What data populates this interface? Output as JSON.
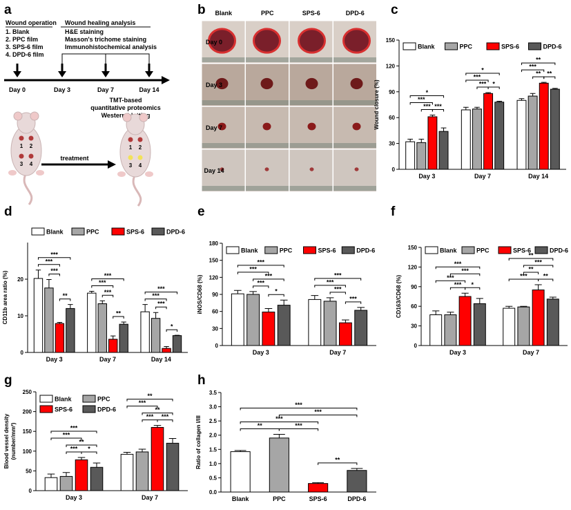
{
  "panel_labels": [
    "a",
    "b",
    "c",
    "d",
    "e",
    "f",
    "g",
    "h"
  ],
  "panel_a": {
    "operation_title": "Wound operation",
    "groups": [
      "1. Blank",
      "2. PPC film",
      "3. SPS-6 film",
      "4. DPD-6 film"
    ],
    "analysis_title": "Wound healing analysis",
    "analyses": [
      "H&E staining",
      "Masson's trichome staining",
      "Immunohistochemical analysis"
    ],
    "timeline": [
      "Day 0",
      "Day 3",
      "Day 7",
      "Day 14"
    ],
    "proteomics": [
      "TMT-based",
      "quantitative proteomics",
      "Western blotting"
    ],
    "treatment": "treatment",
    "site_numbers": [
      "1",
      "2",
      "3",
      "4"
    ]
  },
  "panel_b": {
    "columns": [
      "Blank",
      "PPC",
      "SPS-6",
      "DPD-6"
    ],
    "rows": [
      "Day 0",
      "Day 3",
      "Day 7",
      "Day 14"
    ]
  },
  "chart_data": [
    {
      "type": "bar",
      "y_label": "Wound closure (%)",
      "categories": [
        "Day 3",
        "Day 7",
        "Day 14"
      ],
      "series": [
        {
          "name": "Blank",
          "color": "#ffffff",
          "values": [
            32,
            69,
            80
          ],
          "errors": [
            3,
            3,
            2
          ]
        },
        {
          "name": "PPC",
          "color": "#a6a6a6",
          "values": [
            31,
            70,
            85
          ],
          "errors": [
            4,
            2,
            3
          ]
        },
        {
          "name": "SPS-6",
          "color": "#ff0000",
          "values": [
            61,
            88,
            100
          ],
          "errors": [
            2,
            1,
            1
          ]
        },
        {
          "name": "DPD-6",
          "color": "#595959",
          "values": [
            44,
            78,
            93
          ],
          "errors": [
            4,
            1,
            1
          ]
        }
      ],
      "ylim": [
        0,
        150
      ],
      "yticks": [
        0,
        30,
        60,
        90,
        120,
        150
      ],
      "legend": "upper center",
      "annotations": [
        {
          "text": "***",
          "category": 0,
          "bars": [
            1,
            2
          ]
        },
        {
          "text": "***",
          "category": 0,
          "bars": [
            2,
            3
          ]
        },
        {
          "text": "***",
          "category": 0,
          "bars": [
            0,
            2
          ]
        },
        {
          "text": "*",
          "category": 0,
          "bars": [
            0,
            3
          ]
        },
        {
          "text": "***",
          "category": 1,
          "bars": [
            1,
            2
          ]
        },
        {
          "text": "*",
          "category": 1,
          "bars": [
            2,
            3
          ]
        },
        {
          "text": "***",
          "category": 1,
          "bars": [
            0,
            2
          ]
        },
        {
          "text": "*",
          "category": 1,
          "bars": [
            0,
            3
          ]
        },
        {
          "text": "**",
          "category": 2,
          "bars": [
            1,
            2
          ]
        },
        {
          "text": "**",
          "category": 2,
          "bars": [
            2,
            3
          ]
        },
        {
          "text": "***",
          "category": 2,
          "bars": [
            0,
            2
          ]
        },
        {
          "text": "**",
          "category": 2,
          "bars": [
            0,
            3
          ]
        }
      ]
    },
    {
      "type": "bar",
      "y_label": "CD11b area ratio (%)",
      "categories": [
        "Day 3",
        "Day 7",
        "Day 14"
      ],
      "series": [
        {
          "name": "Blank",
          "color": "#ffffff",
          "values": [
            20.2,
            16.2,
            11.1
          ],
          "errors": [
            2.3,
            0.5,
            2
          ]
        },
        {
          "name": "PPC",
          "color": "#a6a6a6",
          "values": [
            17.6,
            13.3,
            9.3
          ],
          "errors": [
            2.3,
            0.8,
            1.6
          ]
        },
        {
          "name": "SPS-6",
          "color": "#ff0000",
          "values": [
            7.9,
            3.6,
            1.1
          ],
          "errors": [
            0.3,
            0.9,
            0.5
          ]
        },
        {
          "name": "DPD-6",
          "color": "#595959",
          "values": [
            12,
            7.7,
            4.6
          ],
          "errors": [
            1.1,
            0.6,
            0.1
          ]
        }
      ],
      "ylim": [
        0,
        30
      ],
      "yticks": [
        0,
        10,
        20
      ],
      "legend": "upper center",
      "annotations": [
        {
          "text": "**",
          "category": 0,
          "bars": [
            2,
            3
          ]
        },
        {
          "text": "***",
          "category": 0,
          "bars": [
            1,
            2
          ]
        },
        {
          "text": "***",
          "category": 0,
          "bars": [
            0,
            2
          ]
        },
        {
          "text": "***",
          "category": 0,
          "bars": [
            0,
            3
          ]
        },
        {
          "text": "**",
          "category": 1,
          "bars": [
            2,
            3
          ]
        },
        {
          "text": "***",
          "category": 1,
          "bars": [
            1,
            2
          ]
        },
        {
          "text": "***",
          "category": 1,
          "bars": [
            0,
            2
          ]
        },
        {
          "text": "***",
          "category": 1,
          "bars": [
            0,
            3
          ]
        },
        {
          "text": "*",
          "category": 2,
          "bars": [
            2,
            3
          ]
        },
        {
          "text": "***",
          "category": 2,
          "bars": [
            1,
            2
          ]
        },
        {
          "text": "***",
          "category": 2,
          "bars": [
            0,
            2
          ]
        },
        {
          "text": "***",
          "category": 2,
          "bars": [
            0,
            3
          ]
        }
      ]
    },
    {
      "type": "bar",
      "y_label": "iNOS/CD68 (%)",
      "categories": [
        "Day 3",
        "Day 7"
      ],
      "series": [
        {
          "name": "Blank",
          "color": "#ffffff",
          "values": [
            91,
            81
          ],
          "errors": [
            6,
            7
          ]
        },
        {
          "name": "PPC",
          "color": "#a6a6a6",
          "values": [
            90,
            78
          ],
          "errors": [
            5,
            6
          ]
        },
        {
          "name": "SPS-6",
          "color": "#ff0000",
          "values": [
            59,
            40
          ],
          "errors": [
            6,
            5
          ]
        },
        {
          "name": "DPD-6",
          "color": "#595959",
          "values": [
            71,
            62
          ],
          "errors": [
            9,
            5
          ]
        }
      ],
      "ylim": [
        0,
        180
      ],
      "yticks": [
        0,
        30,
        60,
        90,
        120,
        150,
        180
      ],
      "legend": "upper center",
      "annotations": [
        {
          "text": "*",
          "category": 0,
          "bars": [
            2,
            3
          ]
        },
        {
          "text": "***",
          "category": 0,
          "bars": [
            1,
            2
          ]
        },
        {
          "text": "***",
          "category": 0,
          "bars": [
            1,
            3
          ]
        },
        {
          "text": "***",
          "category": 0,
          "bars": [
            0,
            2
          ]
        },
        {
          "text": "***",
          "category": 0,
          "bars": [
            0,
            3
          ]
        },
        {
          "text": "***",
          "category": 1,
          "bars": [
            2,
            3
          ]
        },
        {
          "text": "***",
          "category": 1,
          "bars": [
            1,
            2
          ]
        },
        {
          "text": "***",
          "category": 1,
          "bars": [
            0,
            2
          ]
        },
        {
          "text": "***",
          "category": 1,
          "bars": [
            0,
            3
          ]
        }
      ]
    },
    {
      "type": "bar",
      "y_label": "CD163/CD68 (%)",
      "categories": [
        "Day 3",
        "Day 7"
      ],
      "series": [
        {
          "name": "Blank",
          "color": "#ffffff",
          "values": [
            47,
            57
          ],
          "errors": [
            6,
            3
          ]
        },
        {
          "name": "PPC",
          "color": "#a6a6a6",
          "values": [
            47,
            59
          ],
          "errors": [
            4,
            1
          ]
        },
        {
          "name": "SPS-6",
          "color": "#ff0000",
          "values": [
            75,
            85
          ],
          "errors": [
            5,
            8
          ]
        },
        {
          "name": "DPD-6",
          "color": "#595959",
          "values": [
            64,
            71
          ],
          "errors": [
            8,
            3
          ]
        }
      ],
      "ylim": [
        0,
        150
      ],
      "yticks": [
        0,
        30,
        60,
        90,
        120,
        150
      ],
      "legend": "upper center",
      "annotations": [
        {
          "text": "*",
          "category": 0,
          "bars": [
            2,
            3
          ]
        },
        {
          "text": "***",
          "category": 0,
          "bars": [
            1,
            2
          ]
        },
        {
          "text": "***",
          "category": 0,
          "bars": [
            0,
            2
          ]
        },
        {
          "text": "***",
          "category": 0,
          "bars": [
            1,
            3
          ]
        },
        {
          "text": "***",
          "category": 0,
          "bars": [
            0,
            3
          ]
        },
        {
          "text": "**",
          "category": 1,
          "bars": [
            2,
            3
          ]
        },
        {
          "text": "***",
          "category": 1,
          "bars": [
            0,
            2
          ]
        },
        {
          "text": "**",
          "category": 1,
          "bars": [
            1,
            2
          ]
        },
        {
          "text": "***",
          "category": 1,
          "bars": [
            1,
            3
          ]
        },
        {
          "text": "**",
          "category": 1,
          "bars": [
            0,
            3
          ]
        }
      ]
    },
    {
      "type": "bar",
      "y_label": [
        "Blood vessel density",
        "(number/mm²)"
      ],
      "categories": [
        "Day 3",
        "Day 7"
      ],
      "series": [
        {
          "name": "Blank",
          "color": "#ffffff",
          "values": [
            33,
            92
          ],
          "errors": [
            9,
            5
          ]
        },
        {
          "name": "PPC",
          "color": "#a6a6a6",
          "values": [
            36,
            98
          ],
          "errors": [
            10,
            7
          ]
        },
        {
          "name": "SPS-6",
          "color": "#ff0000",
          "values": [
            78,
            160
          ],
          "errors": [
            6,
            5
          ]
        },
        {
          "name": "DPD-6",
          "color": "#595959",
          "values": [
            59,
            120
          ],
          "errors": [
            11,
            12
          ]
        }
      ],
      "ylim": [
        0,
        250
      ],
      "yticks": [
        0,
        50,
        100,
        150,
        200,
        250
      ],
      "legend": "upper left",
      "legend_columns": 2,
      "annotations": [
        {
          "text": "*",
          "category": 0,
          "bars": [
            2,
            3
          ]
        },
        {
          "text": "***",
          "category": 0,
          "bars": [
            1,
            2
          ]
        },
        {
          "text": "**",
          "category": 0,
          "bars": [
            1,
            3
          ]
        },
        {
          "text": "***",
          "category": 0,
          "bars": [
            0,
            2
          ]
        },
        {
          "text": "***",
          "category": 0,
          "bars": [
            0,
            3
          ]
        },
        {
          "text": "***",
          "category": 1,
          "bars": [
            1,
            2
          ]
        },
        {
          "text": "***",
          "category": 1,
          "bars": [
            2,
            3
          ]
        },
        {
          "text": "**",
          "category": 1,
          "bars": [
            1,
            3
          ]
        },
        {
          "text": "***",
          "category": 1,
          "bars": [
            0,
            2
          ]
        },
        {
          "text": "**",
          "category": 1,
          "bars": [
            0,
            3
          ]
        }
      ]
    },
    {
      "type": "bar",
      "y_label": "Ratio of collagen I/III",
      "categories": [
        "Blank",
        "PPC",
        "SPS-6",
        "DPD-6"
      ],
      "values": [
        1.42,
        1.9,
        0.3,
        0.76
      ],
      "errors": [
        0.04,
        0.13,
        0.03,
        0.07
      ],
      "colors": [
        "#ffffff",
        "#a6a6a6",
        "#ff0000",
        "#595959"
      ],
      "ylim": [
        0,
        3.5
      ],
      "yticks": [
        {
          "value": 0,
          "label": "0.0"
        },
        0.5,
        {
          "value": 1,
          "label": "1.0"
        },
        1.5,
        {
          "value": 2,
          "label": "2.0"
        },
        2.5,
        {
          "value": 3,
          "label": "3.0"
        },
        3.5
      ],
      "annotations": [
        {
          "text": "**",
          "bars": [
            2,
            3
          ]
        },
        {
          "text": "**",
          "bars": [
            0,
            1
          ]
        },
        {
          "text": "***",
          "bars": [
            1,
            2
          ]
        },
        {
          "text": "***",
          "bars": [
            0,
            2
          ]
        },
        {
          "text": "***",
          "bars": [
            1,
            3
          ]
        },
        {
          "text": "***",
          "bars": [
            0,
            3
          ]
        }
      ]
    }
  ]
}
